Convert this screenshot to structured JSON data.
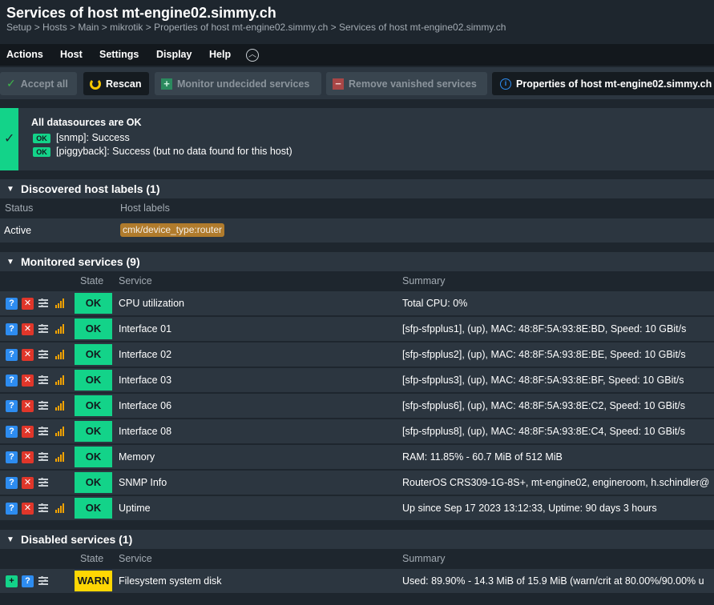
{
  "header": {
    "title": "Services of host mt-engine02.simmy.ch",
    "breadcrumb": "Setup > Hosts > Main > mikrotik > Properties of host mt-engine02.simmy.ch > Services of host mt-engine02.simmy.ch"
  },
  "menu": {
    "items": [
      "Actions",
      "Host",
      "Settings",
      "Display",
      "Help"
    ],
    "toggle_icon": "chevron-up-icon"
  },
  "toolbar": {
    "accept_all": "Accept all",
    "rescan": "Rescan",
    "monitor_undecided": "Monitor undecided services",
    "remove_vanished": "Remove vanished services",
    "properties": "Properties of host mt-engine02.simmy.ch"
  },
  "status": {
    "title": "All datasources are OK",
    "badge": "OK",
    "lines": [
      "[snmp]: Success",
      "[piggyback]: Success (but no data found for this host)"
    ]
  },
  "host_labels": {
    "title": "Discovered host labels (1)",
    "columns": [
      "Status",
      "Host labels"
    ],
    "rows": [
      {
        "status": "Active",
        "label": "cmk/device_type:router"
      }
    ]
  },
  "monitored": {
    "title": "Monitored services (9)",
    "columns": [
      "State",
      "Service",
      "Summary"
    ],
    "rows": [
      {
        "state": "OK",
        "service": "CPU utilization",
        "summary": "Total CPU: 0%",
        "graph": true
      },
      {
        "state": "OK",
        "service": "Interface 01",
        "summary": "[sfp-sfpplus1], (up), MAC: 48:8F:5A:93:8E:BD, Speed: 10 GBit/s",
        "graph": true
      },
      {
        "state": "OK",
        "service": "Interface 02",
        "summary": "[sfp-sfpplus2], (up), MAC: 48:8F:5A:93:8E:BE, Speed: 10 GBit/s",
        "graph": true
      },
      {
        "state": "OK",
        "service": "Interface 03",
        "summary": "[sfp-sfpplus3], (up), MAC: 48:8F:5A:93:8E:BF, Speed: 10 GBit/s",
        "graph": true
      },
      {
        "state": "OK",
        "service": "Interface 06",
        "summary": "[sfp-sfpplus6], (up), MAC: 48:8F:5A:93:8E:C2, Speed: 10 GBit/s",
        "graph": true
      },
      {
        "state": "OK",
        "service": "Interface 08",
        "summary": "[sfp-sfpplus8], (up), MAC: 48:8F:5A:93:8E:C4, Speed: 10 GBit/s",
        "graph": true
      },
      {
        "state": "OK",
        "service": "Memory",
        "summary": "RAM: 11.85% - 60.7 MiB of 512 MiB",
        "graph": true
      },
      {
        "state": "OK",
        "service": "SNMP Info",
        "summary": "RouterOS CRS309-1G-8S+, mt-engine02, engineroom, h.schindler@",
        "graph": false
      },
      {
        "state": "OK",
        "service": "Uptime",
        "summary": "Up since Sep 17 2023 13:12:33, Uptime: 90 days 3 hours",
        "graph": true
      }
    ]
  },
  "disabled": {
    "title": "Disabled services (1)",
    "columns": [
      "State",
      "Service",
      "Summary"
    ],
    "rows": [
      {
        "state": "WARN",
        "service": "Filesystem system disk",
        "summary": "Used: 89.90% - 14.3 MiB of 15.9 MiB (warn/crit at 80.00%/90.00% u"
      }
    ]
  },
  "colors": {
    "ok": "#13d389",
    "warn": "#ffd703",
    "accent_blue": "#2d8cf0",
    "remove_red": "#e0362a",
    "label_chip": "#b07b2c"
  }
}
